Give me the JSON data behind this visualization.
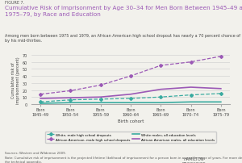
{
  "title_label": "FIGURE 7.",
  "title": "Cumulative Risk of Imprisonment by Age 30–34 for Men Born Between 1945–49 and\n1975–79, by Race and Education",
  "subtitle": "Among men born between 1975 and 1979, an African American high school dropout has nearly a 70 percent chance of being imprisoned\nby his mid-thirties.",
  "xlabel": "Birth cohort",
  "ylabel": "Cumulative risk of\nimprisonment (percent)",
  "x_labels": [
    "Born\n1945–49",
    "Born\n1950–54",
    "Born\n1955–59",
    "Born\n1960–64",
    "Born\n1965–69",
    "Born\n1970–74",
    "Born\n1975–79"
  ],
  "x_values": [
    0,
    1,
    2,
    3,
    4,
    5,
    6
  ],
  "white_dropout": [
    3,
    6,
    7,
    8,
    10,
    13,
    15
  ],
  "black_dropout": [
    14,
    19,
    27,
    40,
    55,
    60,
    68
  ],
  "white_all": [
    1,
    2,
    2,
    2,
    2,
    3,
    3
  ],
  "black_all": [
    8,
    9,
    10,
    14,
    21,
    24,
    22
  ],
  "ylim": [
    0,
    70
  ],
  "yticks": [
    0,
    10,
    20,
    30,
    40,
    50,
    60,
    70
  ],
  "white_color": "#3aaba0",
  "black_color": "#9b59b6",
  "background_color": "#f2f1ec",
  "grid_color": "#cccccc",
  "legend_entries": [
    "White, male high school dropouts",
    "African American, male high school dropouts",
    "White males, all education levels",
    "African American males, all education levels"
  ],
  "source_text": "Sources: Western and Wildeman 2009.",
  "note_text": "Note: Cumulative risk of imprisonment is the projected lifetime likelihood of imprisonment for a person born in a specific range of years. For more details, see\nthe technical appendix."
}
